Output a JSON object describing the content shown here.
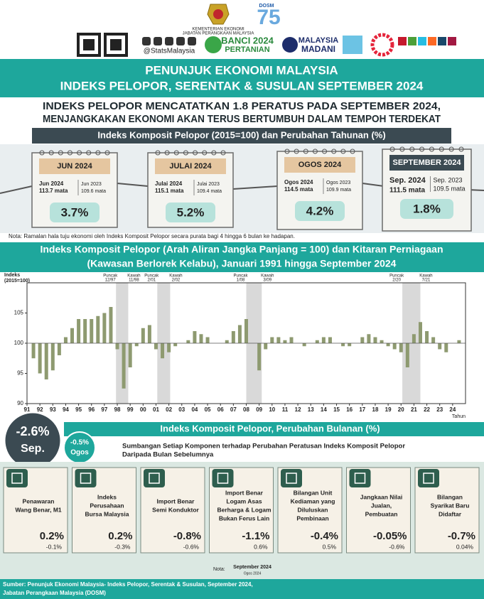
{
  "header": {
    "ministry": "KEMENTERIAN EKONOMI",
    "department": "JABATAN PERANGKAAN MALAYSIA",
    "social": "@StatsMalaysia",
    "banci": "BANCI 2024",
    "banci_sub": "PERTANIAN",
    "madani": "MALAYSIA",
    "madani_sub": "MADANI",
    "dosm": "DOSM",
    "dosm_years": "75"
  },
  "title": [
    "PENUNJUK EKONOMI MALAYSIA",
    "INDEKS PELOPOR, SERENTAK & SUSULAN SEPTEMBER 2024"
  ],
  "headline": [
    "INDEKS PELOPOR MENCATATKAN 1.8 PERATUS PADA SEPTEMBER 2024,",
    "MENJANGKAKAN EKONOMI AKAN TERUS BERTUMBUH DALAM TEMPOH TERDEKAT"
  ],
  "annual": {
    "heading": "Indeks Komposit Pelopor (2015=100)  dan Perubahan Tahunan (%)",
    "cards": [
      {
        "month": "JUN 2024",
        "current_label": "Jun 2024",
        "current_value": "113.7 mata",
        "previous_label": "Jun 2023",
        "previous_value": "109.6 mata",
        "change": "3.7%"
      },
      {
        "month": "JULAI 2024",
        "current_label": "Julai 2024",
        "current_value": "115.1 mata",
        "previous_label": "Julai 2023",
        "previous_value": "109.4 mata",
        "change": "5.2%"
      },
      {
        "month": "OGOS 2024",
        "current_label": "Ogos 2024",
        "current_value": "114.5 mata",
        "previous_label": "Ogos 2023",
        "previous_value": "109.9 mata",
        "change": "4.2%"
      },
      {
        "month": "SEPTEMBER 2024",
        "current_label": "Sep. 2024",
        "current_value": "111.5 mata",
        "previous_label": "Sep. 2023",
        "previous_value": "109.5 mata",
        "change": "1.8%"
      }
    ],
    "note": "Nota: Ramalan hala tuju ekonomi oleh Indeks Komposit Pelopor secara purata bagi 4 hingga  6 bulan ke hadapan."
  },
  "chart_data": {
    "type": "bar",
    "title": [
      "Indeks Komposit Pelopor (Arah Aliran Jangka Panjang = 100) dan Kitaran Perniagaan",
      "(Kawasan Berlorek Kelabu), Januari 1991 hingga September 2024"
    ],
    "y_label": [
      "Indeks",
      "(2015=100)"
    ],
    "x_label": "Tahun",
    "color": "#8e9a70",
    "baseline": 100,
    "x": [
      1991,
      1991.5,
      1992,
      1992.5,
      1993,
      1993.5,
      1994,
      1994.5,
      1995,
      1995.5,
      1996,
      1996.5,
      1997,
      1997.5,
      1998,
      1998.5,
      1999,
      1999.5,
      2000,
      2000.5,
      2001,
      2001.5,
      2002,
      2002.5,
      2003,
      2003.5,
      2004,
      2004.5,
      2005,
      2005.5,
      2006,
      2006.5,
      2007,
      2007.5,
      2008,
      2008.5,
      2009,
      2009.5,
      2010,
      2010.5,
      2011,
      2011.5,
      2012,
      2012.5,
      2013,
      2013.5,
      2014,
      2014.5,
      2015,
      2015.5,
      2016,
      2016.5,
      2017,
      2017.5,
      2018,
      2018.5,
      2019,
      2019.5,
      2020,
      2020.5,
      2021,
      2021.5,
      2022,
      2022.5,
      2023,
      2023.5,
      2024,
      2024.5
    ],
    "values": [
      100,
      97.5,
      95,
      94,
      95.5,
      98,
      101,
      102.5,
      104,
      104,
      104,
      104.5,
      105,
      106,
      99,
      92.5,
      96,
      99.5,
      102.5,
      103,
      99,
      97.5,
      98.5,
      99.5,
      100,
      100.5,
      102,
      101.5,
      101,
      100,
      100,
      100.5,
      102,
      103,
      104,
      100,
      95.5,
      99,
      101,
      101,
      100.5,
      101,
      100,
      99.5,
      100,
      100.5,
      101,
      101,
      100,
      99.5,
      99.5,
      100,
      101,
      101.5,
      101,
      100.5,
      99.5,
      99,
      98.5,
      96,
      101.5,
      103.5,
      102,
      101,
      99,
      98.5,
      100,
      100.5
    ],
    "xlim": [
      1991,
      2025
    ],
    "ylim": [
      90,
      110
    ],
    "yticks": [
      90,
      95,
      100,
      105
    ],
    "xticks": [
      {
        "value": 1991,
        "label": "91"
      },
      {
        "value": 1992,
        "label": "92"
      },
      {
        "value": 1993,
        "label": "93"
      },
      {
        "value": 1994,
        "label": "94"
      },
      {
        "value": 1995,
        "label": "95"
      },
      {
        "value": 1996,
        "label": "96"
      },
      {
        "value": 1997,
        "label": "97"
      },
      {
        "value": 1998,
        "label": "98"
      },
      {
        "value": 1999,
        "label": "99"
      },
      {
        "value": 2000,
        "label": "00"
      },
      {
        "value": 2001,
        "label": "01"
      },
      {
        "value": 2002,
        "label": "02"
      },
      {
        "value": 2003,
        "label": "03"
      },
      {
        "value": 2004,
        "label": "04"
      },
      {
        "value": 2005,
        "label": "05"
      },
      {
        "value": 2006,
        "label": "06"
      },
      {
        "value": 2007,
        "label": "07"
      },
      {
        "value": 2008,
        "label": "08"
      },
      {
        "value": 2009,
        "label": "09"
      },
      {
        "value": 2010,
        "label": "10"
      },
      {
        "value": 2011,
        "label": "11"
      },
      {
        "value": 2012,
        "label": "12"
      },
      {
        "value": 2013,
        "label": "13"
      },
      {
        "value": 2014,
        "label": "14"
      },
      {
        "value": 2015,
        "label": "15"
      },
      {
        "value": 2016,
        "label": "16"
      },
      {
        "value": 2017,
        "label": "17"
      },
      {
        "value": 2018,
        "label": "18"
      },
      {
        "value": 2019,
        "label": "19"
      },
      {
        "value": 2020,
        "label": "20"
      },
      {
        "value": 2021,
        "label": "21"
      },
      {
        "value": 2022,
        "label": "22"
      },
      {
        "value": 2023,
        "label": "23"
      },
      {
        "value": 2024,
        "label": "24"
      }
    ],
    "peak_label": "Puncak",
    "trough_label": "Kawah",
    "cycles": [
      {
        "peak": "12/97",
        "trough": "11/98",
        "start": 1997.9,
        "end": 1998.85
      },
      {
        "peak": "2/01",
        "trough": "2/02",
        "start": 2001.1,
        "end": 2002.1
      },
      {
        "peak": "1/08",
        "trough": "3/09",
        "start": 2008.0,
        "end": 2009.2
      },
      {
        "peak": "2/20",
        "trough": "7/21",
        "start": 2020.1,
        "end": 2021.5
      }
    ]
  },
  "monthly": {
    "change": "-2.6%",
    "month": "Sep.",
    "previous_change": "-0.5%",
    "previous_month": "Ogos",
    "heading": "Indeks Komposit Pelopor, Perubahan Bulanan (%)",
    "subheading": [
      "Sumbangan Setiap Komponen terhadap Perubahan Peratusan Indeks Komposit Pelopor",
      "Daripada Bulan Sebelumnya"
    ],
    "components": [
      {
        "label": [
          "Penawaran",
          "Wang Benar, M1"
        ],
        "current": "0.2%",
        "previous": "-0.1%"
      },
      {
        "label": [
          "Indeks",
          "Perusahaan",
          "Bursa Malaysia"
        ],
        "current": "0.2%",
        "previous": "-0.3%"
      },
      {
        "label": [
          "Import Benar",
          "Semi Konduktor"
        ],
        "current": "-0.8%",
        "previous": "-0.6%"
      },
      {
        "label": [
          "Import Benar",
          "Logam Asas",
          "Berharga & Logam",
          "Bukan Ferus Lain"
        ],
        "current": "-1.1%",
        "previous": "0.6%"
      },
      {
        "label": [
          "Bilangan Unit",
          "Kediaman yang",
          "Diluluskan",
          "Pembinaan"
        ],
        "current": "-0.4%",
        "previous": "0.5%"
      },
      {
        "label": [
          "Jangkaan Nilai",
          "Jualan,",
          "Pembuatan"
        ],
        "current": "-0.05%",
        "previous": "-0.6%"
      },
      {
        "label": [
          "Bilangan",
          "Syarikat Baru",
          "Didaftar"
        ],
        "current": "-0.7%",
        "previous": "0.04%"
      }
    ],
    "note_label": "Nota:",
    "note_current": "September 2024",
    "note_previous": "Ogos 2024"
  },
  "source": [
    "Sumber: Penunjuk Ekonomi Malaysia- Indeks Pelopor, Serentak & Susulan, September 2024,",
    "Jabatan Perangkaan Malaysia (DOSM)"
  ]
}
